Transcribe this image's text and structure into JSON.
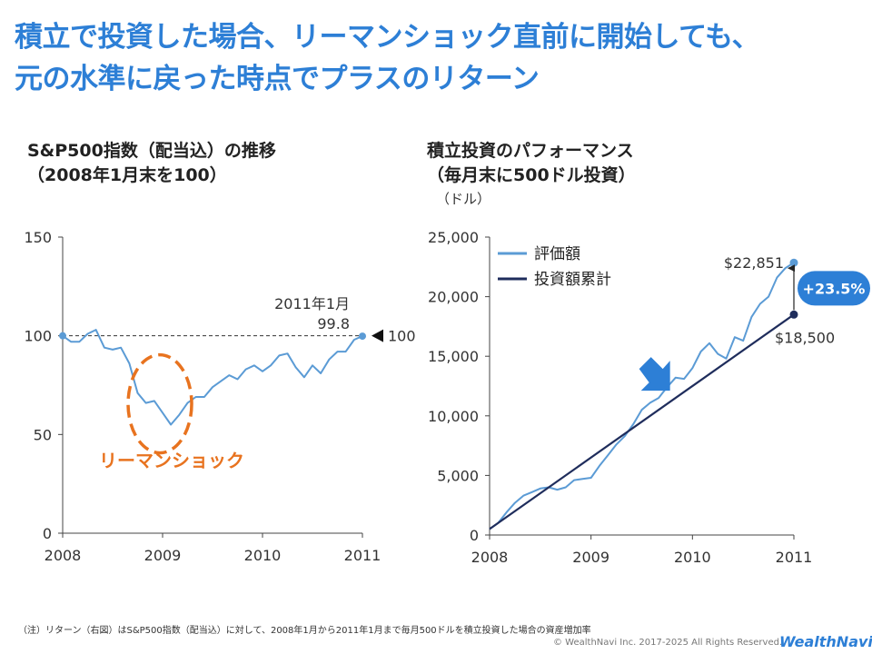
{
  "headline": {
    "line1": "積立で投資した場合、リーマンショック直前に開始しても、",
    "line2": "元の水準に戻った時点でプラスのリターン"
  },
  "left_chart": {
    "title_line1": "S&P500指数（配当込）の推移",
    "title_line2": "（2008年1月末を100）"
  },
  "right_chart": {
    "title_line1": "積立投資のパフォーマンス",
    "title_line2": "（毎月末に500ドル投資）",
    "unit": "（ドル）"
  },
  "chart_data": [
    {
      "type": "line",
      "title": "S&P500指数（配当込）の推移",
      "subtitle": "（2008年1月末を100）",
      "xlabel": "",
      "ylabel": "",
      "xlim": [
        2008,
        2011
      ],
      "ylim": [
        0,
        150
      ],
      "x_ticks": [
        "2008",
        "2009",
        "2010",
        "2011"
      ],
      "y_ticks": [
        "0",
        "50",
        "100",
        "150"
      ],
      "series": [
        {
          "name": "S&P500",
          "color": "#5b9bd5",
          "x": [
            2008.0,
            2008.083,
            2008.167,
            2008.25,
            2008.333,
            2008.417,
            2008.5,
            2008.583,
            2008.667,
            2008.75,
            2008.833,
            2008.917,
            2009.0,
            2009.083,
            2009.167,
            2009.25,
            2009.333,
            2009.417,
            2009.5,
            2009.583,
            2009.667,
            2009.75,
            2009.833,
            2009.917,
            2010.0,
            2010.083,
            2010.167,
            2010.25,
            2010.333,
            2010.417,
            2010.5,
            2010.583,
            2010.667,
            2010.75,
            2010.833,
            2010.917,
            2011.0
          ],
          "values": [
            100,
            97,
            97,
            101,
            103,
            94,
            93,
            94,
            86,
            71,
            66,
            67,
            61,
            55,
            60,
            66,
            69,
            69,
            74,
            77,
            80,
            78,
            83,
            85,
            82,
            85,
            90,
            91,
            84,
            79,
            85,
            81,
            88,
            92,
            92,
            98,
            99.8
          ]
        }
      ],
      "reference_line": {
        "value": 100,
        "style": "dashed",
        "label": "100"
      },
      "annotations": [
        {
          "text": "2011年1月",
          "x": 2011.0
        },
        {
          "text": "99.8",
          "x": 2011.0,
          "y": 99.8
        },
        {
          "text": "リーマンショック",
          "x": 2009.0,
          "y": 60,
          "color": "#e8731f",
          "shape": "dashed-ellipse"
        }
      ]
    },
    {
      "type": "line",
      "title": "積立投資のパフォーマンス",
      "subtitle": "（毎月末に500ドル投資）",
      "xlabel": "",
      "ylabel": "（ドル）",
      "xlim": [
        2008,
        2011
      ],
      "ylim": [
        0,
        25000
      ],
      "x_ticks": [
        "2008",
        "2009",
        "2010",
        "2011"
      ],
      "y_ticks": [
        "0",
        "5,000",
        "10,000",
        "15,000",
        "20,000",
        "25,000"
      ],
      "legend": {
        "position": "top-left",
        "entries": [
          "評価額",
          "投資額累計"
        ]
      },
      "series": [
        {
          "name": "評価額",
          "color": "#5b9bd5",
          "x": [
            2008.0,
            2008.083,
            2008.167,
            2008.25,
            2008.333,
            2008.417,
            2008.5,
            2008.583,
            2008.667,
            2008.75,
            2008.833,
            2008.917,
            2009.0,
            2009.083,
            2009.167,
            2009.25,
            2009.333,
            2009.417,
            2009.5,
            2009.583,
            2009.667,
            2009.75,
            2009.833,
            2009.917,
            2010.0,
            2010.083,
            2010.167,
            2010.25,
            2010.333,
            2010.417,
            2010.5,
            2010.583,
            2010.667,
            2010.75,
            2010.833,
            2010.917,
            2011.0
          ],
          "values": [
            500,
            1000,
            1900,
            2700,
            3300,
            3600,
            3900,
            4000,
            3800,
            4000,
            4600,
            4700,
            4800,
            5800,
            6700,
            7600,
            8300,
            9300,
            10500,
            11100,
            11500,
            12400,
            13200,
            13100,
            14000,
            15400,
            16100,
            15200,
            14800,
            16600,
            16300,
            18300,
            19400,
            20000,
            21600,
            22400,
            22851
          ]
        },
        {
          "name": "投資額累計",
          "color": "#1f2d5c",
          "x": [
            2008.0,
            2011.0
          ],
          "values": [
            500,
            18500
          ]
        }
      ],
      "annotations": [
        {
          "text": "$22,851",
          "x": 2011.0,
          "y": 22851
        },
        {
          "text": "$18,500",
          "x": 2011.0,
          "y": 18500
        },
        {
          "text": "+23.5%",
          "x": 2011.0,
          "y": 20700,
          "shape": "badge",
          "color": "#2d7fd6"
        },
        {
          "text": "",
          "x": 2009.6,
          "y": 11500,
          "shape": "arrow-down",
          "color": "#2d7fd6"
        }
      ]
    }
  ],
  "footnote": "（注）リターン（右図）はS&P500指数（配当込）に対して、2008年1月から2011年1月まで毎月500ドルを積立投資した場合の資産増加率",
  "copyright": "© WealthNavi Inc. 2017-2025 All Rights Reserved.",
  "brand": "WealthNavi",
  "colors": {
    "accent": "#2d7fd6",
    "series_light": "#5b9bd5",
    "series_dark": "#1f2d5c",
    "highlight": "#e8731f"
  }
}
